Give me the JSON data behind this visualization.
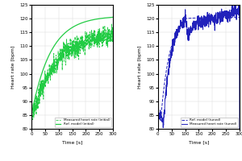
{
  "left": {
    "xlabel": "Time [s]",
    "ylabel": "Heart rate [bpm]",
    "xlim": [
      0,
      300
    ],
    "ylim": [
      80,
      125
    ],
    "yticks": [
      80,
      85,
      90,
      95,
      100,
      105,
      110,
      115,
      120,
      125
    ],
    "xticks": [
      0,
      50,
      100,
      150,
      200,
      250,
      300
    ],
    "legend": [
      "Measured heart rate (initial)",
      "Ref. model (initial)"
    ],
    "measured_color": "#22cc44",
    "model_color": "#22cc44"
  },
  "right": {
    "xlabel": "Time [s]",
    "ylabel": "Heart rate [bpm]",
    "xlim": [
      0,
      300
    ],
    "ylim": [
      80,
      125
    ],
    "yticks": [
      80,
      85,
      90,
      95,
      100,
      105,
      110,
      115,
      120,
      125
    ],
    "xticks": [
      0,
      50,
      100,
      150,
      200,
      250,
      300
    ],
    "legend": [
      "Ref. model (tuned)",
      "Measured heart rate (tuned)"
    ],
    "measured_color": "#2222bb",
    "model_color": "#2222bb"
  },
  "background_color": "#ffffff",
  "grid_color": "#cccccc"
}
